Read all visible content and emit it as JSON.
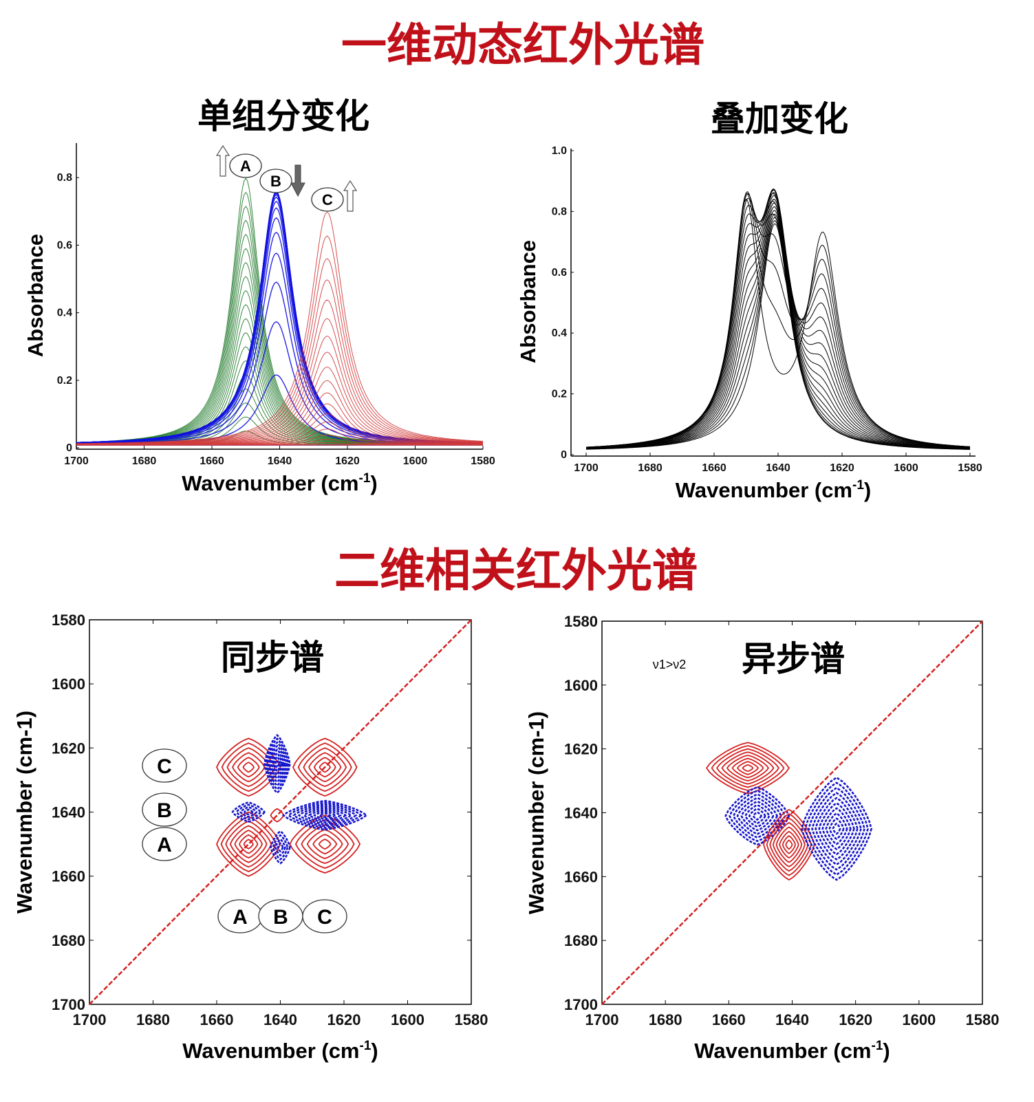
{
  "titles": {
    "section1": "一维动态红外光谱",
    "section2": "二维相关红外光谱"
  },
  "chart_data": [
    {
      "type": "line",
      "title": "单组分变化",
      "xlabel": "Wavenumber (cm",
      "xlabel_sup": "-1",
      "xlabel_end": ")",
      "ylabel": "Absorbance",
      "xlim": [
        1700,
        1580
      ],
      "ylim": [
        0,
        0.9
      ],
      "xticks": [
        1700,
        1680,
        1660,
        1640,
        1620,
        1600,
        1580
      ],
      "yticks": [
        0,
        0.2,
        0.4,
        0.6,
        0.8
      ],
      "ytick_labels": [
        "0",
        "0.2",
        "0.4",
        "0.6",
        "0.8"
      ],
      "n_spectra": 20,
      "series": [
        {
          "name": "A",
          "center": 1650,
          "hwhm": 5,
          "amp_min": 0.0,
          "amp_max": 0.79,
          "trend": "increase",
          "color": "#1f7a2a"
        },
        {
          "name": "B",
          "center": 1641,
          "hwhm": 6,
          "amp_min": 0.0,
          "amp_max": 0.75,
          "trend": "decrease",
          "color": "#1010e0"
        },
        {
          "name": "C",
          "center": 1626,
          "hwhm": 6,
          "amp_min": 0.0,
          "amp_max": 0.69,
          "trend": "increase",
          "color": "#d23a3a"
        }
      ],
      "annotations": [
        "A",
        "B",
        "C"
      ]
    },
    {
      "type": "line",
      "title": "叠加变化",
      "xlabel": "Wavenumber (cm",
      "xlabel_sup": "-1",
      "xlabel_end": ")",
      "ylabel": "Absorbance",
      "xlim": [
        1700,
        1580
      ],
      "ylim": [
        0,
        1.0
      ],
      "xticks": [
        1700,
        1680,
        1660,
        1640,
        1620,
        1600,
        1580
      ],
      "yticks": [
        0,
        0.2,
        0.4,
        0.6,
        0.8,
        1.0
      ],
      "ytick_labels": [
        "0",
        "0.2",
        "0.4",
        "0.6",
        "0.8",
        "1.0"
      ],
      "description": "sum of components A+B+C",
      "color": "#000000"
    },
    {
      "type": "heatmap",
      "subtype": "contour",
      "title": "同步谱",
      "xlabel": "Wavenumber (cm",
      "xlabel_sup": "-1",
      "xlabel_end": ")",
      "ylabel": "Wavenumber (cm-1)",
      "ylabel_main": "Wavenumber (cm",
      "xlim": [
        1700,
        1580
      ],
      "ylim": [
        1700,
        1580
      ],
      "xticks": [
        1700,
        1680,
        1660,
        1640,
        1620,
        1600,
        1580
      ],
      "yticks": [
        1580,
        1600,
        1620,
        1640,
        1660,
        1680,
        1700
      ],
      "positive_color": "#d42020",
      "negative_color": "#1515cc",
      "peaks": [
        {
          "x": 1650,
          "y": 1650,
          "sign": 1,
          "ex": 10,
          "ey": 10,
          "levels": 7
        },
        {
          "x": 1641,
          "y": 1641,
          "sign": 1,
          "ex": 2,
          "ey": 2,
          "levels": 1
        },
        {
          "x": 1626,
          "y": 1626,
          "sign": 1,
          "ex": 10,
          "ey": 9,
          "levels": 6
        },
        {
          "x": 1650,
          "y": 1626,
          "sign": 1,
          "ex": 10,
          "ey": 9,
          "levels": 6
        },
        {
          "x": 1626,
          "y": 1650,
          "sign": 1,
          "ex": 11,
          "ey": 9,
          "levels": 6
        },
        {
          "x": 1641,
          "y": 1625,
          "sign": -1,
          "ex": 4,
          "ey": 9,
          "levels": 8
        },
        {
          "x": 1626,
          "y": 1641,
          "sign": -1,
          "ex": 13,
          "ey": 4.5,
          "levels": 8
        },
        {
          "x": 1650,
          "y": 1640,
          "sign": -1,
          "ex": 5,
          "ey": 3,
          "levels": 4
        },
        {
          "x": 1640,
          "y": 1651,
          "sign": -1,
          "ex": 3,
          "ey": 5,
          "levels": 4
        }
      ],
      "x_labels": [
        "A",
        "B",
        "C"
      ],
      "y_labels": [
        "C",
        "B",
        "A"
      ]
    },
    {
      "type": "heatmap",
      "subtype": "contour",
      "title": "异步谱",
      "note": "ν1>ν2",
      "xlabel": "Wavenumber (cm",
      "xlabel_sup": "-1",
      "xlabel_end": ")",
      "ylabel_main": "Wavenumber (cm",
      "xlim": [
        1700,
        1580
      ],
      "ylim": [
        1700,
        1580
      ],
      "xticks": [
        1700,
        1680,
        1660,
        1640,
        1620,
        1600,
        1580
      ],
      "yticks": [
        1580,
        1600,
        1620,
        1640,
        1660,
        1680,
        1700
      ],
      "positive_color": "#d42020",
      "negative_color": "#1515cc",
      "peaks": [
        {
          "x": 1654,
          "y": 1626,
          "sign": 1,
          "ex": 13,
          "ey": 8,
          "levels": 8
        },
        {
          "x": 1651,
          "y": 1641,
          "sign": -1,
          "ex": 10,
          "ey": 9,
          "levels": 8
        },
        {
          "x": 1641,
          "y": 1650,
          "sign": 1,
          "ex": 8,
          "ey": 11,
          "levels": 8
        },
        {
          "x": 1626,
          "y": 1645,
          "sign": -1,
          "ex": 11,
          "ey": 16,
          "levels": 10
        }
      ]
    }
  ]
}
